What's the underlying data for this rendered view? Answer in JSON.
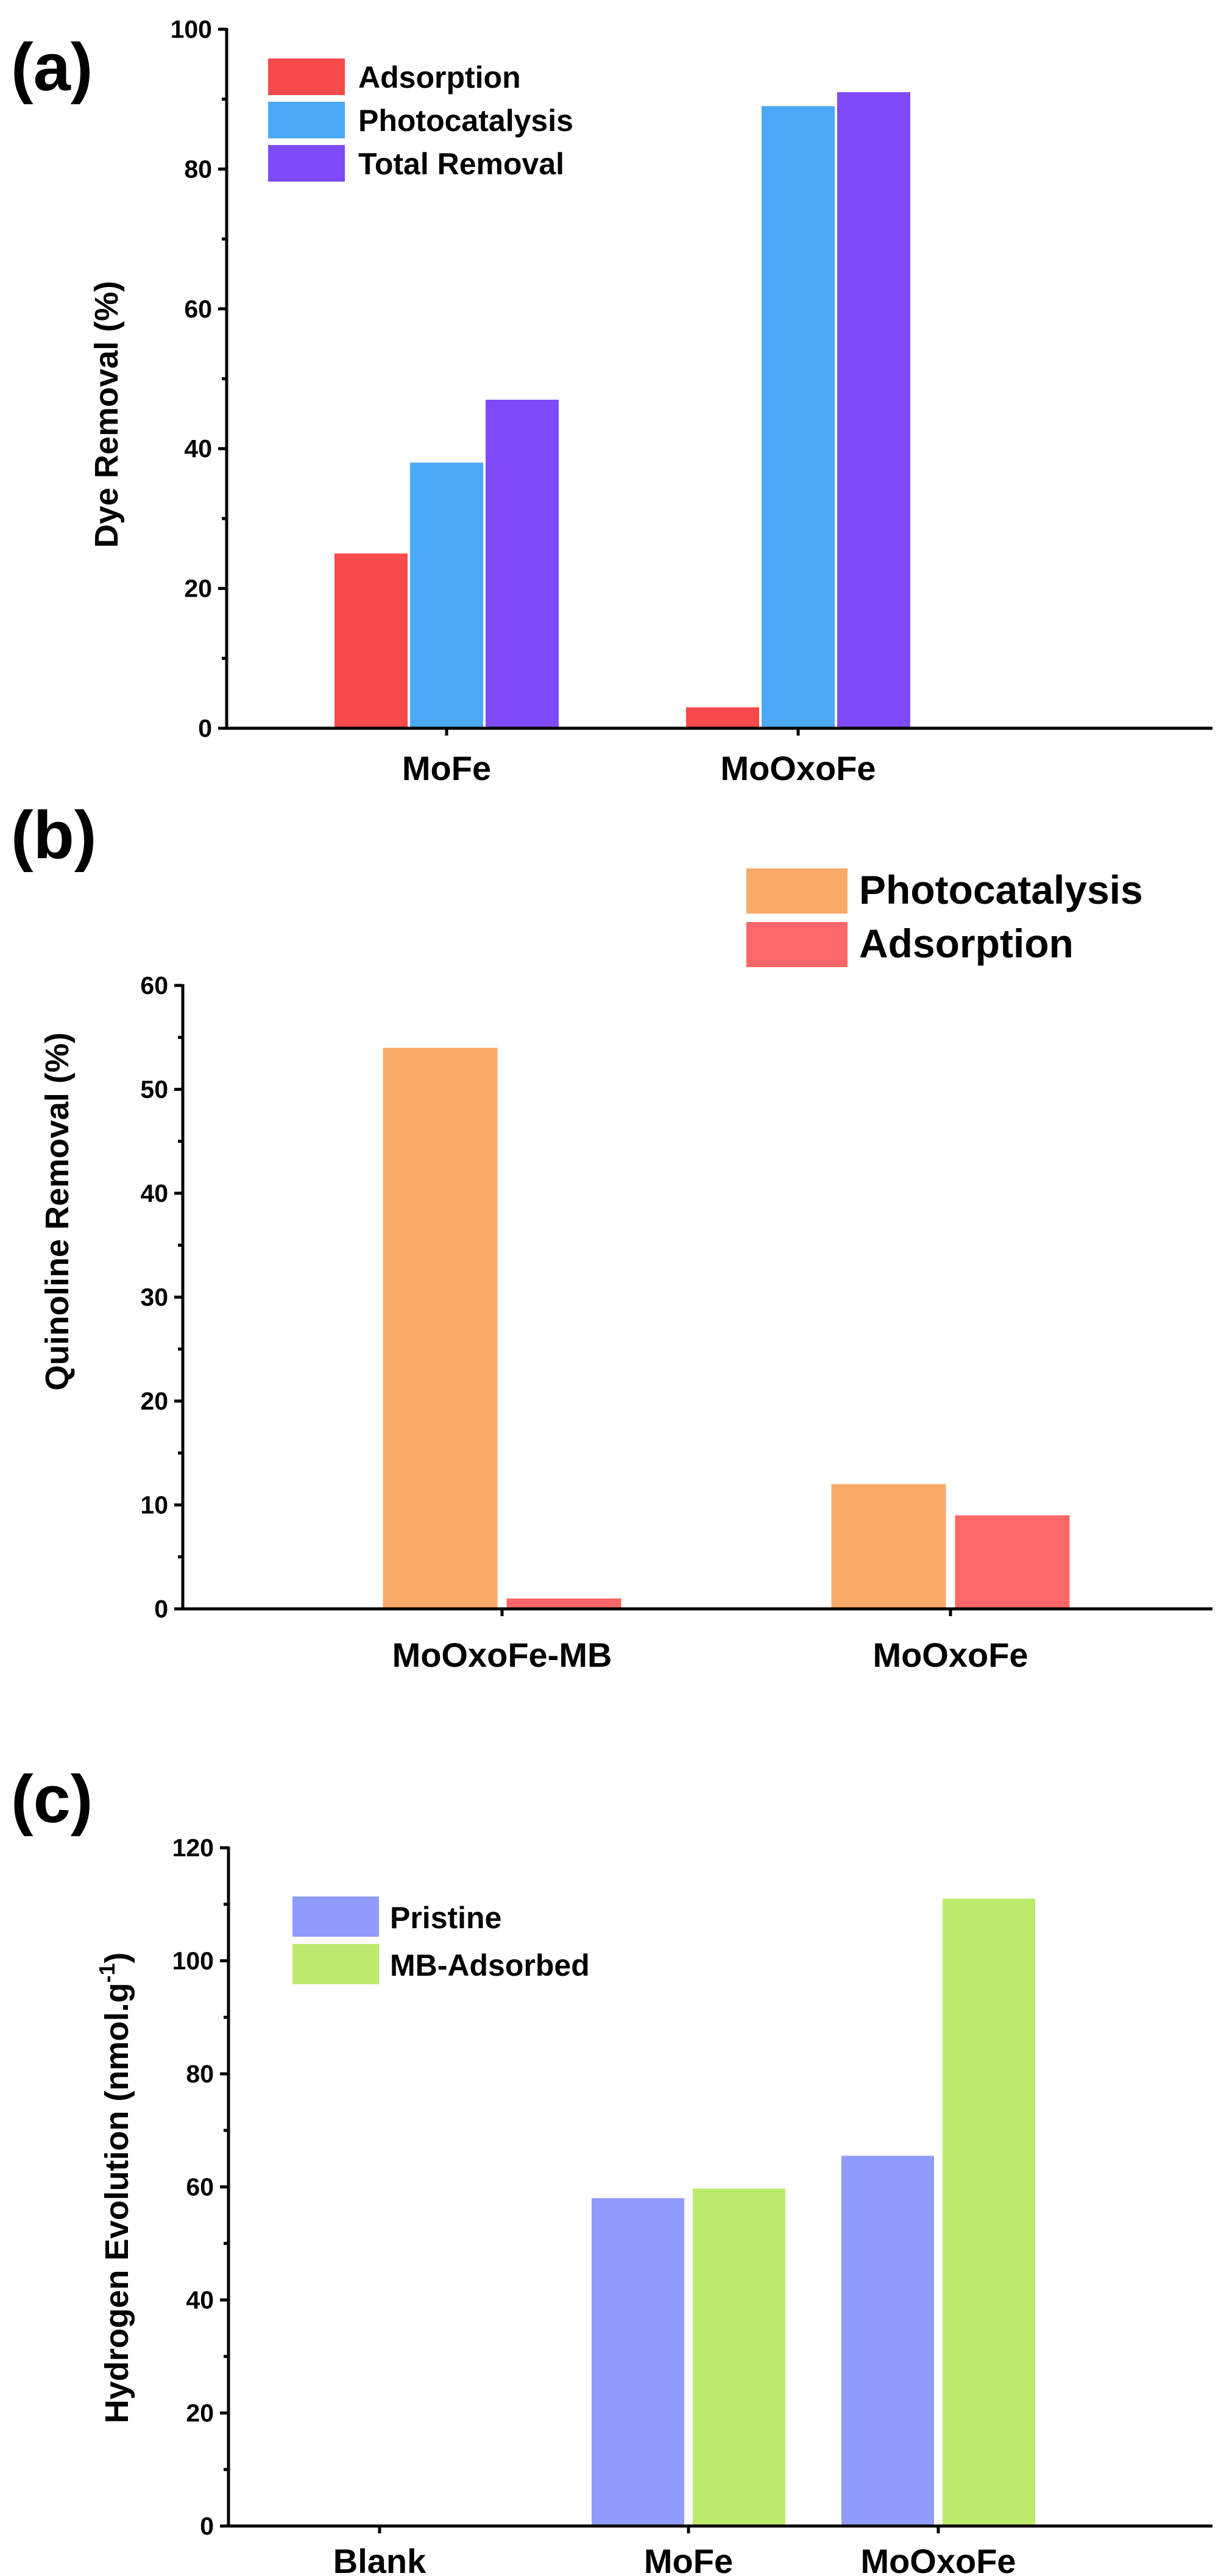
{
  "chart_data": [
    {
      "panel_label": "(a)",
      "type": "bar",
      "categories": [
        "MoFe",
        "MoOxoFe"
      ],
      "series": [
        {
          "name": "Adsorption",
          "color": "#f84a4a",
          "values": [
            25,
            3
          ]
        },
        {
          "name": "Photocatalysis",
          "color": "#4aa8f8",
          "values": [
            38,
            89
          ]
        },
        {
          "name": "Total Removal",
          "color": "#7f4af8",
          "values": [
            47,
            91
          ]
        }
      ],
      "ylabel": "Dye Removal (%)",
      "ylim": [
        0,
        100
      ],
      "yticks": [
        0,
        20,
        40,
        60,
        80,
        100
      ],
      "legend_position": "top-left"
    },
    {
      "panel_label": "(b)",
      "type": "bar",
      "categories": [
        "MoOxoFe-MB",
        "MoOxoFe"
      ],
      "series": [
        {
          "name": "Photocatalysis",
          "color": "#f9aa68",
          "values": [
            54,
            12
          ]
        },
        {
          "name": "Adsorption",
          "color": "#fe6767",
          "values": [
            1,
            9
          ]
        }
      ],
      "ylabel": "Quinoline Removal (%)",
      "ylim": [
        0,
        60
      ],
      "yticks": [
        0,
        10,
        20,
        30,
        40,
        50,
        60
      ],
      "legend_position": "top-right"
    },
    {
      "panel_label": "(c)",
      "type": "bar",
      "categories": [
        "Blank",
        "MoFe",
        "MoOxoFe"
      ],
      "series": [
        {
          "name": "Pristine",
          "color": "#8f9cfb",
          "values": [
            0,
            58,
            65.5
          ]
        },
        {
          "name": "MB-Adsorbed",
          "color": "#bcea6c",
          "values": [
            0,
            59.7,
            111
          ]
        }
      ],
      "ylabel": "Hydrogen Evolution (nmol.g",
      "ylabel_superscript": "-1",
      "ylabel_suffix": ")",
      "ylim": [
        0,
        120
      ],
      "yticks": [
        0,
        20,
        40,
        60,
        80,
        100,
        120
      ],
      "legend_position": "top-left"
    }
  ]
}
